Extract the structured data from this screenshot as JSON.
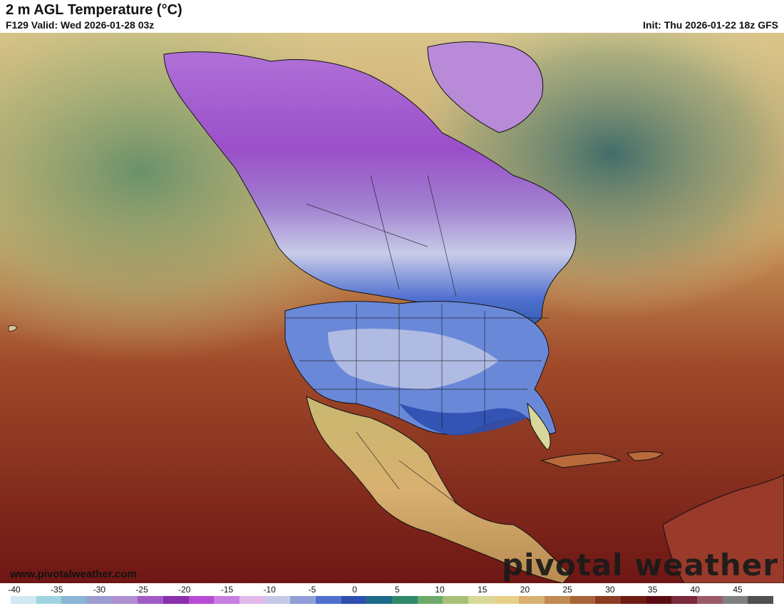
{
  "header": {
    "title": "2 m AGL Temperature (°C)",
    "valid": "F129 Valid: Wed 2026-01-28 03z",
    "init": "Init: Thu 2026-01-22 18z GFS"
  },
  "footer": {
    "website": "www.pivotalweather.com",
    "logo_text": "pivotal weather"
  },
  "colorbar": {
    "ticks": [
      "-40",
      "-35",
      "-30",
      "-25",
      "-20",
      "-15",
      "-10",
      "-5",
      "0",
      "5",
      "10",
      "15",
      "20",
      "25",
      "30",
      "35",
      "40",
      "45"
    ],
    "min": -40,
    "max": 50,
    "colors": [
      "#cfeaf0",
      "#9fd3e0",
      "#8ab6d6",
      "#9a9dd0",
      "#b08fd0",
      "#a05bc4",
      "#8a2fb0",
      "#b84ad6",
      "#c87ee0",
      "#e0b8ea",
      "#c7c7e8",
      "#8fa0d8",
      "#4f6fd0",
      "#2e4fb0",
      "#1e6a8a",
      "#2f8a6a",
      "#6faa6a",
      "#a8c07a",
      "#d8d89a",
      "#e8d088",
      "#d8b070",
      "#c08a50",
      "#a86438",
      "#8c3c22",
      "#6e1c14",
      "#5a0c10",
      "#7a2a3a",
      "#9a5a6a",
      "#808080",
      "#505050"
    ]
  },
  "map": {
    "water_color": "#7a1c1a",
    "land_warm_color": "#d8b070",
    "land_cold_color": "#9a4fc8"
  }
}
